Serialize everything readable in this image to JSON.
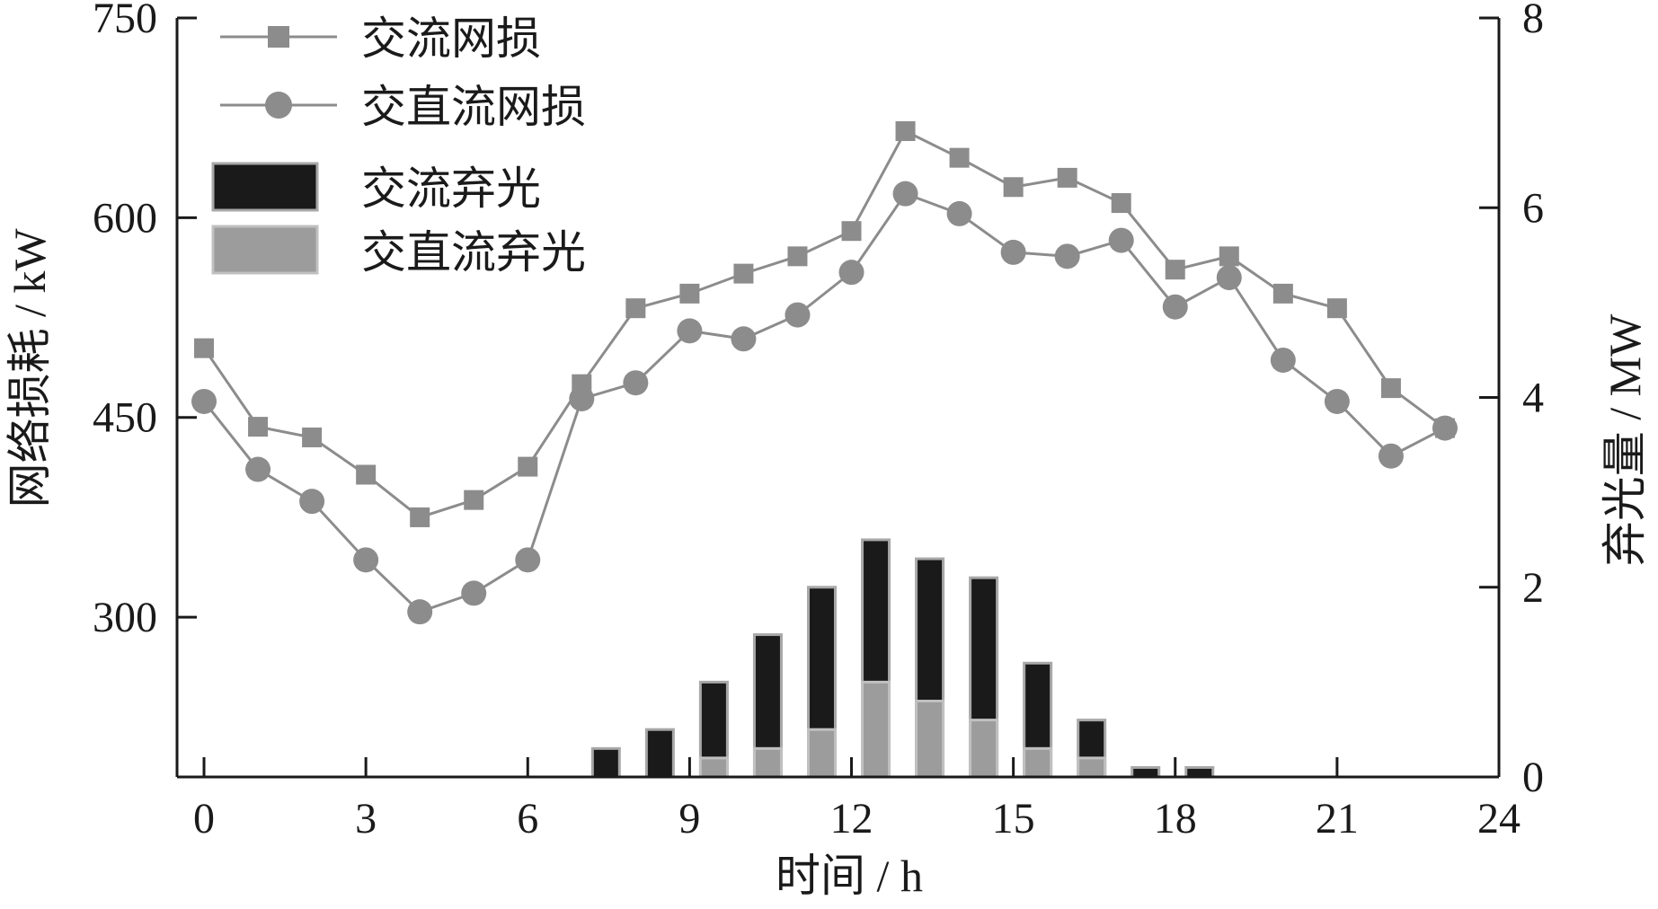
{
  "chart_data": {
    "type": "line",
    "title": "",
    "xlabel": "时间 / h",
    "ylabel_left": "网络损耗 / kW",
    "ylabel_right": "弃光量 / MW",
    "x_ticks": [
      "0",
      "3",
      "6",
      "9",
      "12",
      "15",
      "18",
      "21",
      "24"
    ],
    "y_left_ticks": [
      "300",
      "450",
      "600",
      "750"
    ],
    "y_right_ticks": [
      "0",
      "2",
      "4",
      "6",
      "8"
    ],
    "xlim": [
      -0.5,
      24
    ],
    "ylim_left": [
      180,
      750
    ],
    "ylim_right": [
      0,
      8
    ],
    "x": [
      0,
      1,
      2,
      3,
      4,
      5,
      6,
      7,
      8,
      9,
      10,
      11,
      12,
      13,
      14,
      15,
      16,
      17,
      18,
      19,
      20,
      21,
      22,
      23
    ],
    "series": [
      {
        "name": "交流网损",
        "axis": "left",
        "marker": "square",
        "color": "#8c8c8c",
        "values": [
          502,
          443,
          435,
          407,
          375,
          388,
          413,
          475,
          532,
          543,
          558,
          571,
          590,
          665,
          645,
          623,
          630,
          611,
          561,
          571,
          543,
          532,
          472,
          442
        ]
      },
      {
        "name": "交直流网损",
        "axis": "left",
        "marker": "circle",
        "color": "#8c8c8c",
        "values": [
          462,
          411,
          387,
          343,
          304,
          318,
          343,
          464,
          476,
          515,
          509,
          527,
          559,
          618,
          603,
          574,
          571,
          583,
          533,
          555,
          493,
          462,
          421,
          442
        ]
      }
    ],
    "bar_series": [
      {
        "name": "交流弃光",
        "axis": "right",
        "color": "#1a1a1a",
        "x": [
          7,
          8,
          9,
          10,
          11,
          12,
          13,
          14,
          15,
          16,
          17,
          18
        ],
        "values": [
          0.3,
          0.5,
          1.0,
          1.5,
          2.0,
          2.5,
          2.3,
          2.1,
          1.2,
          0.6,
          0.1,
          0.1
        ]
      },
      {
        "name": "交直流弃光",
        "axis": "right",
        "color": "#9c9c9c",
        "x": [
          7,
          8,
          9,
          10,
          11,
          12,
          13,
          14,
          15,
          16,
          17,
          18
        ],
        "values": [
          0,
          0,
          0.2,
          0.3,
          0.5,
          1.0,
          0.8,
          0.6,
          0.3,
          0.2,
          0,
          0
        ]
      }
    ],
    "legend_position": "top-left",
    "grid": false
  }
}
